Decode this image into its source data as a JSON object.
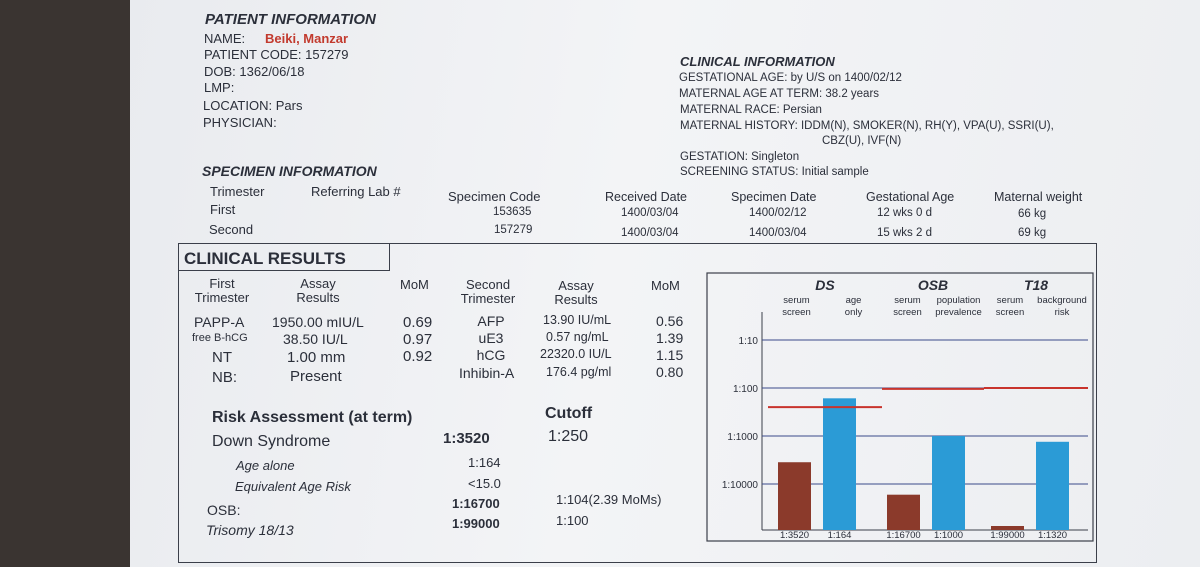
{
  "patient": {
    "heading": "PATIENT INFORMATION",
    "name_label": "NAME:",
    "name_value": "Beiki, Manzar",
    "code": "PATIENT CODE: 157279",
    "dob": "DOB: 1362/06/18",
    "lmp": "LMP:",
    "location": "LOCATION: Pars",
    "physician": "PHYSICIAN:"
  },
  "clinical_info": {
    "heading": "CLINICAL INFORMATION",
    "ga": "GESTATIONAL AGE: by U/S on 1400/02/12",
    "maternal_age": "MATERNAL AGE AT TERM: 38.2 years",
    "race": "MATERNAL RACE: Persian",
    "history": "MATERNAL HISTORY: IDDM(N), SMOKER(N), RH(Y), VPA(U), SSRI(U),",
    "history2": "CBZ(U), IVF(N)",
    "gestation": "GESTATION: Singleton",
    "screening": "SCREENING STATUS: Initial sample"
  },
  "specimen": {
    "heading": "SPECIMEN INFORMATION",
    "headers": [
      "Trimester",
      "Referring Lab #",
      "Specimen Code",
      "Received Date",
      "Specimen Date",
      "Gestational Age",
      "Maternal weight"
    ],
    "rows": [
      [
        "First",
        "",
        "153635",
        "1400/03/04",
        "1400/02/12",
        "12 wks 0 d",
        "66 kg"
      ],
      [
        "Second",
        "",
        "157279",
        "1400/03/04",
        "1400/03/04",
        "15 wks 2 d",
        "69 kg"
      ]
    ]
  },
  "results": {
    "heading": "CLINICAL RESULTS",
    "first_header": [
      "First",
      "Trimester"
    ],
    "assay_header": [
      "Assay",
      "Results"
    ],
    "mom_header": "MoM",
    "second_header": [
      "Second",
      "Trimester"
    ],
    "first_rows": [
      {
        "name": "PAPP-A",
        "result": "1950.00 mIU/L",
        "mom": "0.69"
      },
      {
        "name": "free B-hCG",
        "result": "38.50 IU/L",
        "mom": "0.97"
      },
      {
        "name": "NT",
        "result": "1.00 mm",
        "mom": "0.92"
      },
      {
        "name": "NB:",
        "result": "Present",
        "mom": ""
      }
    ],
    "second_rows": [
      {
        "name": "AFP",
        "result": "13.90 IU/mL",
        "mom": "0.56"
      },
      {
        "name": "uE3",
        "result": "0.57 ng/mL",
        "mom": "1.39"
      },
      {
        "name": "hCG",
        "result": "22320.0 IU/L",
        "mom": "1.15"
      },
      {
        "name": "Inhibin-A",
        "result": "176.4 pg/ml",
        "mom": "0.80"
      }
    ]
  },
  "risk": {
    "heading": "Risk Assessment (at term)",
    "cutoff_label": "Cutoff",
    "down_label": "Down Syndrome",
    "down_value": "1:3520",
    "down_cutoff": "1:250",
    "age_alone_label": "Age alone",
    "age_alone_value": "1:164",
    "equiv_label": "Equivalent Age Risk",
    "equiv_value": "<15.0",
    "osb_label": "OSB:",
    "osb_value": "1:16700",
    "osb_cutoff": "1:104(2.39 MoMs)",
    "t18_label": "Trisomy 18/13",
    "t18_value": "1:99000",
    "t18_cutoff": "1:100"
  },
  "chart_data": {
    "type": "bar",
    "scale": "log",
    "groups": [
      {
        "name": "DS",
        "sub1": [
          "serum",
          "screen"
        ],
        "sub2": [
          "age",
          "only"
        ]
      },
      {
        "name": "OSB",
        "sub1": [
          "serum",
          "screen"
        ],
        "sub2": [
          "population",
          "prevalence"
        ]
      },
      {
        "name": "T18",
        "sub1": [
          "serum",
          "screen"
        ],
        "sub2": [
          "background",
          "risk"
        ]
      }
    ],
    "y_ticks": [
      "1:10",
      "1:100",
      "1:1000",
      "1:10000"
    ],
    "y_tick_values": [
      10,
      100,
      1000,
      10000
    ],
    "bars": [
      {
        "label": "1:3520",
        "denominator": 3520,
        "color": "#8b3a2b"
      },
      {
        "label": "1:164",
        "denominator": 164,
        "color": "#2b9bd6"
      },
      {
        "label": "1:16700",
        "denominator": 16700,
        "color": "#8b3a2b"
      },
      {
        "label": "1:1000",
        "denominator": 1000,
        "color": "#2b9bd6"
      },
      {
        "label": "1:99000",
        "denominator": 99000,
        "color": "#8b3a2b"
      },
      {
        "label": "1:1320",
        "denominator": 1320,
        "color": "#2b9bd6"
      }
    ],
    "cutoffs": [
      250,
      104,
      100
    ],
    "cutoff_color": "#c8332c"
  }
}
